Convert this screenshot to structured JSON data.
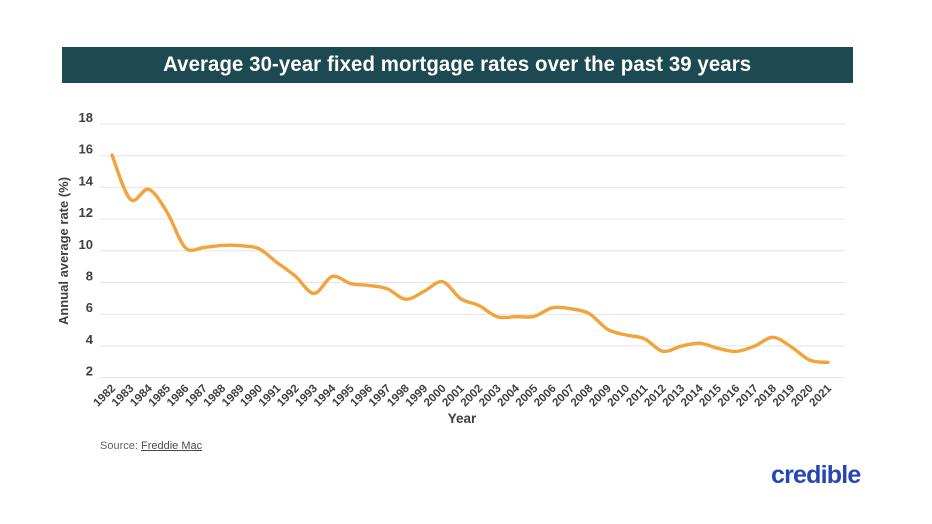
{
  "banner": {
    "title": "Average 30-year fixed mortgage rates over the past 39 years",
    "bg_color": "#1d4a52",
    "text_color": "#ffffff"
  },
  "chart_data": {
    "type": "line",
    "title": "Average 30-year fixed mortgage rates over the past 39 years",
    "xlabel": "Year",
    "ylabel": "Annual average rate (%)",
    "x": [
      1982,
      1983,
      1984,
      1985,
      1986,
      1987,
      1988,
      1989,
      1990,
      1991,
      1992,
      1993,
      1994,
      1995,
      1996,
      1997,
      1998,
      1999,
      2000,
      2001,
      2002,
      2003,
      2004,
      2005,
      2006,
      2007,
      2008,
      2009,
      2010,
      2011,
      2012,
      2013,
      2014,
      2015,
      2016,
      2017,
      2018,
      2019,
      2020,
      2021
    ],
    "series": [
      {
        "name": "Average 30-year fixed mortgage rate (%)",
        "color": "#f2a43c",
        "values": [
          16.04,
          13.24,
          13.88,
          12.43,
          10.19,
          10.21,
          10.34,
          10.32,
          10.13,
          9.25,
          8.39,
          7.31,
          8.38,
          7.93,
          7.81,
          7.6,
          6.94,
          7.44,
          8.05,
          6.97,
          6.54,
          5.83,
          5.84,
          5.87,
          6.41,
          6.34,
          6.03,
          5.04,
          4.69,
          4.45,
          3.66,
          3.98,
          4.17,
          3.85,
          3.65,
          3.99,
          4.54,
          3.94,
          3.1,
          2.96
        ]
      }
    ],
    "ylim": [
      2,
      18
    ],
    "yticks": [
      2,
      4,
      6,
      8,
      10,
      12,
      14,
      16,
      18
    ],
    "grid": true,
    "gridline_color": "#e4e4e4",
    "tick_label_color": "#3f3f3f",
    "legend_position": "none",
    "smooth": true
  },
  "source": {
    "prefix": "Source:",
    "link_text": "Freddie Mac"
  },
  "logo": {
    "text": "credible",
    "color": "#2646b4"
  }
}
